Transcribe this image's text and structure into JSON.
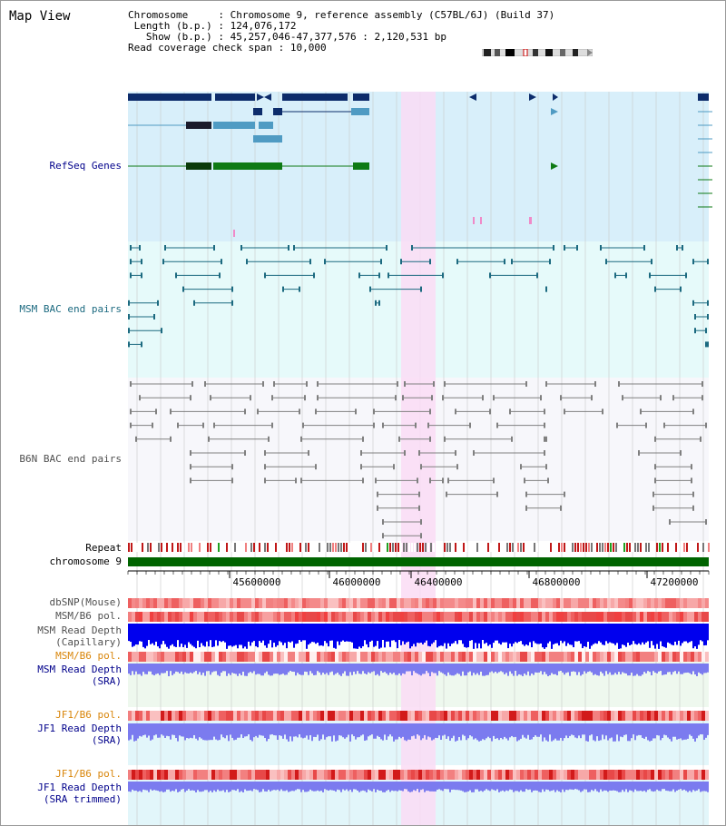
{
  "title": "Map View",
  "info": {
    "chromosome_key": "Chromosome",
    "chromosome_val": "Chromosome 9, reference assembly (C57BL/6J) (Build 37)",
    "length_key": "Length (b.p.)",
    "length_val": "124,076,172",
    "show_key": "Show (b.p.)",
    "show_val": "45,257,046-47,377,576 : 2,120,531 bp",
    "span_key": "Read coverage check span",
    "span_val": "10,000"
  },
  "tracks": {
    "refseq": "RefSeq Genes",
    "msm_bac": "MSM BAC end pairs",
    "b6n_bac": "B6N BAC end pairs",
    "repeat": "Repeat",
    "chromosome": "chromosome 9",
    "dbsnp": "dbSNP(Mouse)",
    "msm_b6_pol_1": "MSM/B6 pol.",
    "msm_read_depth_cap_1": "MSM Read Depth",
    "msm_read_depth_cap_2": "(Capillary)",
    "msm_b6_pol_2": "MSM/B6 pol.",
    "msm_read_depth_sra_1": "MSM Read Depth",
    "msm_read_depth_sra_2": "(SRA)",
    "jf1_b6_pol_1": "JF1/B6 pol.",
    "jf1_read_depth_sra_1": "JF1 Read Depth",
    "jf1_read_depth_sra_2": "(SRA)",
    "jf1_b6_pol_2": "JF1/B6 pol.",
    "jf1_read_depth_trim_1": "JF1 Read Depth",
    "jf1_read_depth_trim_2": "(SRA trimmed)"
  },
  "axis": {
    "ticks": [
      "45600000",
      "46000000",
      "46400000",
      "46800000",
      "47200000"
    ]
  },
  "colors": {
    "refseq_bg": "#d8effa",
    "msm_bg": "#e6fafa",
    "b6n_bg": "#f7f7fb",
    "highlight": "#fadcf5",
    "chromosome_bar": "#006400",
    "gene_dark": "#0d2c6b",
    "gene_light": "#4f9bc3",
    "gene_green": "#0e7a14",
    "msm_line": "#1c6a80",
    "b6n_line": "#808080",
    "label_blue": "#00008b",
    "label_orange": "#d9860b",
    "label_teal": "#1c6a80",
    "label_gray": "#505050",
    "depth_dark_blue": "#0000ee",
    "depth_light_blue": "#7b7bef"
  }
}
